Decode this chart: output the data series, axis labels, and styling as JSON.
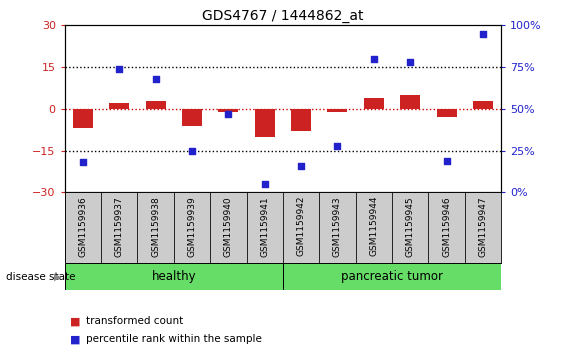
{
  "title": "GDS4767 / 1444862_at",
  "samples": [
    "GSM1159936",
    "GSM1159937",
    "GSM1159938",
    "GSM1159939",
    "GSM1159940",
    "GSM1159941",
    "GSM1159942",
    "GSM1159943",
    "GSM1159944",
    "GSM1159945",
    "GSM1159946",
    "GSM1159947"
  ],
  "transformed_count": [
    -7,
    2,
    3,
    -6,
    -1,
    -10,
    -8,
    -1,
    4,
    5,
    -3,
    3
  ],
  "percentile_rank": [
    18,
    74,
    68,
    25,
    47,
    5,
    16,
    28,
    80,
    78,
    19,
    95
  ],
  "bar_color": "#cc2222",
  "dot_color": "#2222cc",
  "left_ylim": [
    -30,
    30
  ],
  "right_ylim": [
    0,
    100
  ],
  "left_yticks": [
    -30,
    -15,
    0,
    15,
    30
  ],
  "right_yticks": [
    0,
    25,
    50,
    75,
    100
  ],
  "right_yticklabels": [
    "0%",
    "25%",
    "50%",
    "75%",
    "100%"
  ],
  "dotted_lines_black": [
    -15,
    15
  ],
  "zero_line_color": "#cc0000",
  "dotted_color": "#000000",
  "healthy_count": 6,
  "group_labels": [
    "healthy",
    "pancreatic tumor"
  ],
  "green_color": "#66dd66",
  "disease_state_label": "disease state",
  "legend_items": [
    "transformed count",
    "percentile rank within the sample"
  ],
  "tick_label_area_color": "#cccccc",
  "bar_width": 0.55
}
